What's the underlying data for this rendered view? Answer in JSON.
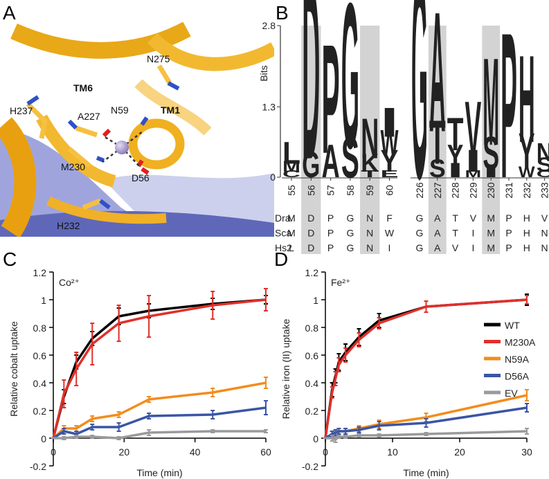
{
  "panels": [
    "A",
    "B",
    "C",
    "D"
  ],
  "structure_labels": [
    "TM6",
    "N275",
    "H237",
    "A227",
    "N59",
    "TM1",
    "M230",
    "D56",
    "H232"
  ],
  "chart_data": [
    {
      "type": "logo",
      "ylabel": "Bits",
      "ylim": [
        0,
        2.8
      ],
      "yticks": [
        0,
        1.3,
        2.8
      ],
      "letter_colors": {
        "A": "#f5a07a",
        "C": "#e03030",
        "D": "#e8000b",
        "E": "#e04040",
        "F": "#4060c0",
        "G": "#f2e600",
        "H": "#7a0040",
        "I": "#c9a040",
        "K": "#503010",
        "L": "#e8a040",
        "M": "#c79ad6",
        "N": "#2f6a6a",
        "P": "#1e96f0",
        "S": "#1030c8",
        "T": "#00d8f0",
        "V": "#f0d040",
        "W": "#58d060",
        "Y": "#f0c030"
      },
      "positions": [
        {
          "label": "55",
          "highlight": false,
          "stack": [
            {
              "letter": "C",
              "height": 0.1
            },
            {
              "letter": "M",
              "height": 0.15
            },
            {
              "letter": "L",
              "height": 0.3
            }
          ]
        },
        {
          "label": "56",
          "highlight": true,
          "stack": [
            {
              "letter": "G",
              "height": 0.35
            },
            {
              "letter": "D",
              "height": 2.45
            }
          ]
        },
        {
          "label": "57",
          "highlight": false,
          "stack": [
            {
              "letter": "A",
              "height": 0.45
            },
            {
              "letter": "P",
              "height": 1.5
            }
          ]
        },
        {
          "label": "58",
          "highlight": false,
          "stack": [
            {
              "letter": "S",
              "height": 0.55
            },
            {
              "letter": "G",
              "height": 2.0
            }
          ]
        },
        {
          "label": "59",
          "highlight": true,
          "stack": [
            {
              "letter": "T",
              "height": 0.1
            },
            {
              "letter": "K",
              "height": 0.25
            },
            {
              "letter": "N",
              "height": 0.55
            }
          ]
        },
        {
          "label": "60",
          "highlight": false,
          "stack": [
            {
              "letter": "E",
              "height": 0.1
            },
            {
              "letter": "Y",
              "height": 0.3
            },
            {
              "letter": "W",
              "height": 0.35
            },
            {
              "letter": "I",
              "height": 0.4
            }
          ]
        },
        {
          "label": "226",
          "highlight": false,
          "stack": [
            {
              "letter": "G",
              "height": 2.8
            }
          ]
        },
        {
          "label": "227",
          "highlight": true,
          "stack": [
            {
              "letter": "S",
              "height": 0.25
            },
            {
              "letter": "T",
              "height": 0.6
            },
            {
              "letter": "A",
              "height": 1.65
            }
          ]
        },
        {
          "label": "228",
          "highlight": false,
          "stack": [
            {
              "letter": "I",
              "height": 0.2
            },
            {
              "letter": "Y",
              "height": 0.3
            },
            {
              "letter": "T",
              "height": 0.45
            }
          ]
        },
        {
          "label": "229",
          "highlight": false,
          "stack": [
            {
              "letter": "M",
              "height": 0.1
            },
            {
              "letter": "I",
              "height": 0.3
            },
            {
              "letter": "V",
              "height": 0.75
            }
          ]
        },
        {
          "label": "230",
          "highlight": true,
          "stack": [
            {
              "letter": "I",
              "height": 0.15
            },
            {
              "letter": "S",
              "height": 0.45
            },
            {
              "letter": "M",
              "height": 1.2
            }
          ]
        },
        {
          "label": "231",
          "highlight": false,
          "stack": [
            {
              "letter": "P",
              "height": 2.0
            }
          ]
        },
        {
          "label": "232",
          "highlight": false,
          "stack": [
            {
              "letter": "W",
              "height": 0.15
            },
            {
              "letter": "Y",
              "height": 0.5
            },
            {
              "letter": "H",
              "height": 1.2
            }
          ]
        },
        {
          "label": "233",
          "highlight": false,
          "stack": [
            {
              "letter": "C",
              "height": 0.1
            },
            {
              "letter": "S",
              "height": 0.2
            },
            {
              "letter": "N",
              "height": 0.25
            }
          ]
        }
      ],
      "alignment": [
        {
          "name": "Dra",
          "residues": [
            "M",
            "D",
            "P",
            "G",
            "N",
            "F",
            "G",
            "A",
            "T",
            "V",
            "M",
            "P",
            "H",
            "V"
          ]
        },
        {
          "name": "Sca",
          "residues": [
            "M",
            "D",
            "P",
            "G",
            "N",
            "W",
            "G",
            "A",
            "T",
            "I",
            "M",
            "P",
            "H",
            "N"
          ]
        },
        {
          "name": "Hs2",
          "residues": [
            "L",
            "D",
            "P",
            "G",
            "N",
            "I",
            "G",
            "A",
            "V",
            "I",
            "M",
            "P",
            "H",
            "N"
          ]
        }
      ]
    },
    {
      "type": "line",
      "annotation": "Co²⁺",
      "xlabel": "Time (min)",
      "ylabel": "Relative cobalt uptake",
      "x": [
        0,
        3,
        6.5,
        11,
        18.5,
        27,
        45,
        60
      ],
      "xlim": [
        0,
        60
      ],
      "xticks": [
        0,
        20,
        40,
        60
      ],
      "ylim": [
        -0.2,
        1.2
      ],
      "yticks": [
        -0.2,
        0,
        0.2,
        0.4,
        0.6,
        0.8,
        1,
        1.2
      ],
      "legend": false,
      "series": [
        {
          "name": "WT",
          "color": "#000000",
          "values": [
            0,
            0.3,
            0.55,
            0.72,
            0.88,
            0.92,
            0.97,
            1.0
          ],
          "errors": [
            0,
            0.05,
            0.05,
            0.05,
            0.06,
            0.05,
            0.04,
            0.03
          ]
        },
        {
          "name": "M230A",
          "color": "#e0302a",
          "values": [
            0,
            0.32,
            0.5,
            0.68,
            0.83,
            0.88,
            0.96,
            1.0
          ],
          "errors": [
            0,
            0.1,
            0.12,
            0.15,
            0.13,
            0.15,
            0.1,
            0.08
          ]
        },
        {
          "name": "N59A",
          "color": "#f28c1c",
          "values": [
            0,
            0.07,
            0.07,
            0.14,
            0.17,
            0.28,
            0.33,
            0.4
          ],
          "errors": [
            0,
            0.02,
            0.02,
            0.02,
            0.02,
            0.02,
            0.03,
            0.04
          ]
        },
        {
          "name": "D56A",
          "color": "#3a55a4",
          "values": [
            0,
            0.05,
            0.03,
            0.08,
            0.08,
            0.16,
            0.17,
            0.22
          ],
          "errors": [
            0,
            0.02,
            0.02,
            0.02,
            0.03,
            0.02,
            0.03,
            0.05
          ]
        },
        {
          "name": "EV",
          "color": "#9a9a9a",
          "values": [
            0,
            0,
            0.01,
            0.01,
            0,
            0.04,
            0.05,
            0.05
          ],
          "errors": [
            0,
            0.01,
            0.01,
            0.01,
            0.01,
            0.02,
            0.01,
            0.01
          ]
        }
      ]
    },
    {
      "type": "line",
      "annotation": "Fe²⁺",
      "xlabel": "Time (min)",
      "ylabel": "Relative iron (II) uptake",
      "x": [
        0,
        1,
        1.5,
        2,
        3,
        5,
        8,
        15,
        30
      ],
      "xlim": [
        0,
        30
      ],
      "xticks": [
        0,
        10,
        20,
        30
      ],
      "ylim": [
        -0.2,
        1.2
      ],
      "yticks": [
        -0.2,
        0,
        0.2,
        0.4,
        0.6,
        0.8,
        1,
        1.2
      ],
      "legend": "right",
      "series": [
        {
          "name": "WT",
          "color": "#000000",
          "values": [
            0,
            0.35,
            0.45,
            0.55,
            0.62,
            0.73,
            0.85,
            0.95,
            1.0
          ],
          "errors": [
            0,
            0.05,
            0.05,
            0.06,
            0.06,
            0.06,
            0.05,
            0.04,
            0.04
          ]
        },
        {
          "name": "M230A",
          "color": "#e0302a",
          "values": [
            0,
            0.33,
            0.43,
            0.53,
            0.6,
            0.71,
            0.83,
            0.95,
            1.0
          ],
          "errors": [
            0,
            0.04,
            0.05,
            0.05,
            0.05,
            0.05,
            0.04,
            0.04,
            0.03
          ]
        },
        {
          "name": "N59A",
          "color": "#f28c1c",
          "values": [
            0,
            0.03,
            0.04,
            0.05,
            0.05,
            0.07,
            0.1,
            0.15,
            0.31
          ],
          "errors": [
            0,
            0.02,
            0.02,
            0.02,
            0.02,
            0.02,
            0.03,
            0.03,
            0.04
          ]
        },
        {
          "name": "D56A",
          "color": "#3a55a4",
          "values": [
            0,
            0.03,
            0.04,
            0.05,
            0.05,
            0.06,
            0.09,
            0.11,
            0.22
          ],
          "errors": [
            0,
            0.02,
            0.02,
            0.02,
            0.02,
            0.02,
            0.03,
            0.03,
            0.03
          ]
        },
        {
          "name": "EV",
          "color": "#9a9a9a",
          "values": [
            0,
            0,
            -0.01,
            0.01,
            0.01,
            0.02,
            0.02,
            0.03,
            0.05
          ],
          "errors": [
            0,
            0.02,
            0.02,
            0.01,
            0.01,
            0.01,
            0.01,
            0.01,
            0.02
          ]
        }
      ]
    }
  ]
}
